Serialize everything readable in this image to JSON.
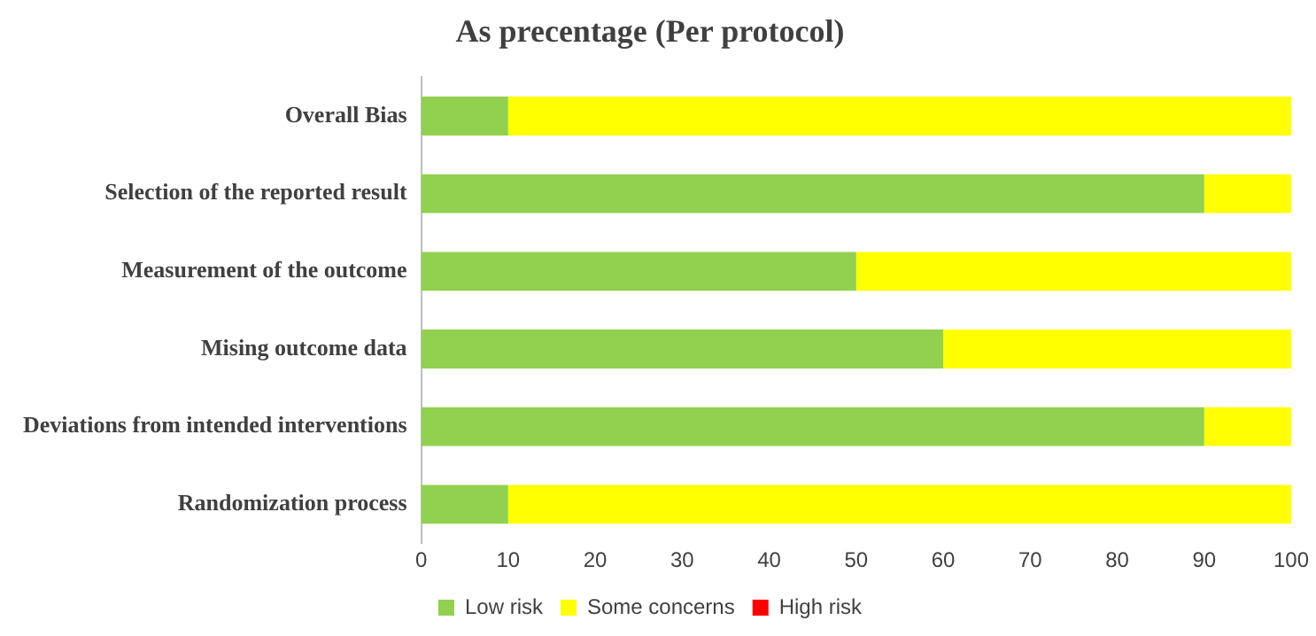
{
  "chart_data": {
    "type": "bar",
    "orientation": "horizontal",
    "stacked": true,
    "title": "As precentage (Per protocol)",
    "categories": [
      "Overall Bias",
      "Selection of the reported result",
      "Measurement of the outcome",
      "Mising outcome data",
      "Deviations from intended interventions",
      "Randomization process"
    ],
    "series": [
      {
        "name": "Low risk",
        "color": "#92d050",
        "values": [
          10,
          90,
          50,
          60,
          90,
          10
        ]
      },
      {
        "name": "Some concerns",
        "color": "#ffff00",
        "values": [
          90,
          10,
          50,
          40,
          10,
          90
        ]
      },
      {
        "name": "High risk",
        "color": "#ff0000",
        "values": [
          0,
          0,
          0,
          0,
          0,
          0
        ]
      }
    ],
    "xlim": [
      0,
      100
    ],
    "xticks": [
      0,
      10,
      20,
      30,
      40,
      50,
      60,
      70,
      80,
      90,
      100
    ],
    "grid": false,
    "legend": "bottom"
  }
}
